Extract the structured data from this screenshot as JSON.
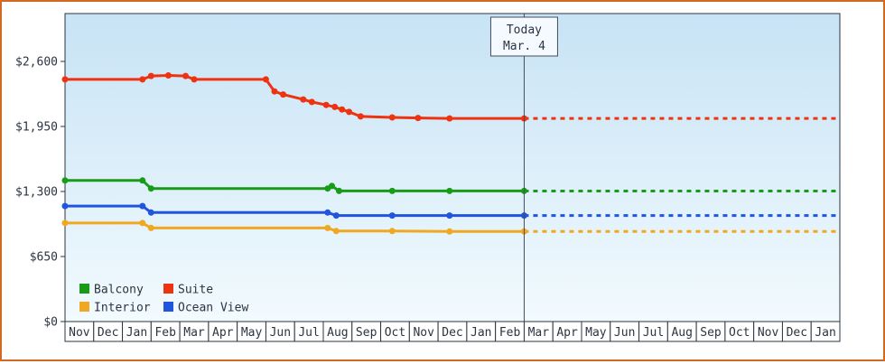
{
  "frame": {
    "border_color": "#d2691e",
    "background": "#ffffff"
  },
  "chart_data": {
    "type": "line",
    "title": "",
    "y_axis": {
      "ticks": [
        {
          "value": 0,
          "label": "$0"
        },
        {
          "value": 650,
          "label": "$650"
        },
        {
          "value": 1300,
          "label": "$1,300"
        },
        {
          "value": 1950,
          "label": "$1,950"
        },
        {
          "value": 2600,
          "label": "$2,600"
        }
      ],
      "ylim": [
        0,
        3080
      ],
      "grid": false
    },
    "x_axis": {
      "months": [
        "Nov",
        "Dec",
        "Jan",
        "Feb",
        "Mar",
        "Apr",
        "May",
        "Jun",
        "Jul",
        "Aug",
        "Sep",
        "Oct",
        "Nov",
        "Dec",
        "Jan",
        "Feb",
        "Mar",
        "Apr",
        "May",
        "Jun",
        "Jul",
        "Aug",
        "Sep",
        "Oct",
        "Nov",
        "Dec",
        "Jan"
      ]
    },
    "today": {
      "month_index": 16,
      "label_line1": "Today",
      "label_line2": "Mar. 4"
    },
    "series": [
      {
        "name": "Balcony",
        "color": "#189c18",
        "points": [
          [
            0,
            1410
          ],
          [
            2.7,
            1410
          ],
          [
            3.0,
            1330
          ],
          [
            9.15,
            1330
          ],
          [
            9.3,
            1355
          ],
          [
            9.55,
            1305
          ],
          [
            11.4,
            1305
          ],
          [
            13.4,
            1305
          ],
          [
            16,
            1305
          ]
        ],
        "forecast": 1305
      },
      {
        "name": "Suite",
        "color": "#ee3311",
        "points": [
          [
            0,
            2420
          ],
          [
            2.7,
            2420
          ],
          [
            3.0,
            2455
          ],
          [
            3.6,
            2460
          ],
          [
            4.2,
            2455
          ],
          [
            4.5,
            2420
          ],
          [
            7.0,
            2420
          ],
          [
            7.3,
            2300
          ],
          [
            7.6,
            2270
          ],
          [
            8.3,
            2220
          ],
          [
            8.6,
            2195
          ],
          [
            9.1,
            2165
          ],
          [
            9.4,
            2145
          ],
          [
            9.65,
            2120
          ],
          [
            9.9,
            2095
          ],
          [
            10.3,
            2050
          ],
          [
            11.4,
            2040
          ],
          [
            12.3,
            2035
          ],
          [
            13.4,
            2030
          ],
          [
            16,
            2030
          ]
        ],
        "forecast": 2030
      },
      {
        "name": "Interior",
        "color": "#f0a822",
        "points": [
          [
            0,
            985
          ],
          [
            2.7,
            985
          ],
          [
            3.0,
            935
          ],
          [
            9.15,
            935
          ],
          [
            9.45,
            905
          ],
          [
            11.4,
            905
          ],
          [
            13.4,
            900
          ],
          [
            16,
            900
          ]
        ],
        "forecast": 900
      },
      {
        "name": "Ocean View",
        "color": "#2255dd",
        "points": [
          [
            0,
            1155
          ],
          [
            2.7,
            1155
          ],
          [
            3.0,
            1090
          ],
          [
            9.15,
            1090
          ],
          [
            9.45,
            1060
          ],
          [
            11.4,
            1060
          ],
          [
            13.4,
            1060
          ],
          [
            16,
            1060
          ]
        ],
        "forecast": 1060
      }
    ],
    "legend": {
      "position": "bottom-left",
      "items": [
        {
          "label": "Balcony",
          "color": "#189c18"
        },
        {
          "label": "Suite",
          "color": "#ee3311"
        },
        {
          "label": "Interior",
          "color": "#f0a822"
        },
        {
          "label": "Ocean View",
          "color": "#2255dd"
        }
      ]
    },
    "style": {
      "plot_bg_top": "#c7e3f5",
      "plot_bg_bottom": "#f2fafe",
      "axis_color": "#2b3442",
      "text_color": "#2b3442",
      "today_line_color": "#444d5c",
      "today_box_fill": "#f4faff",
      "month_cell_fill": "#ffffff"
    }
  }
}
